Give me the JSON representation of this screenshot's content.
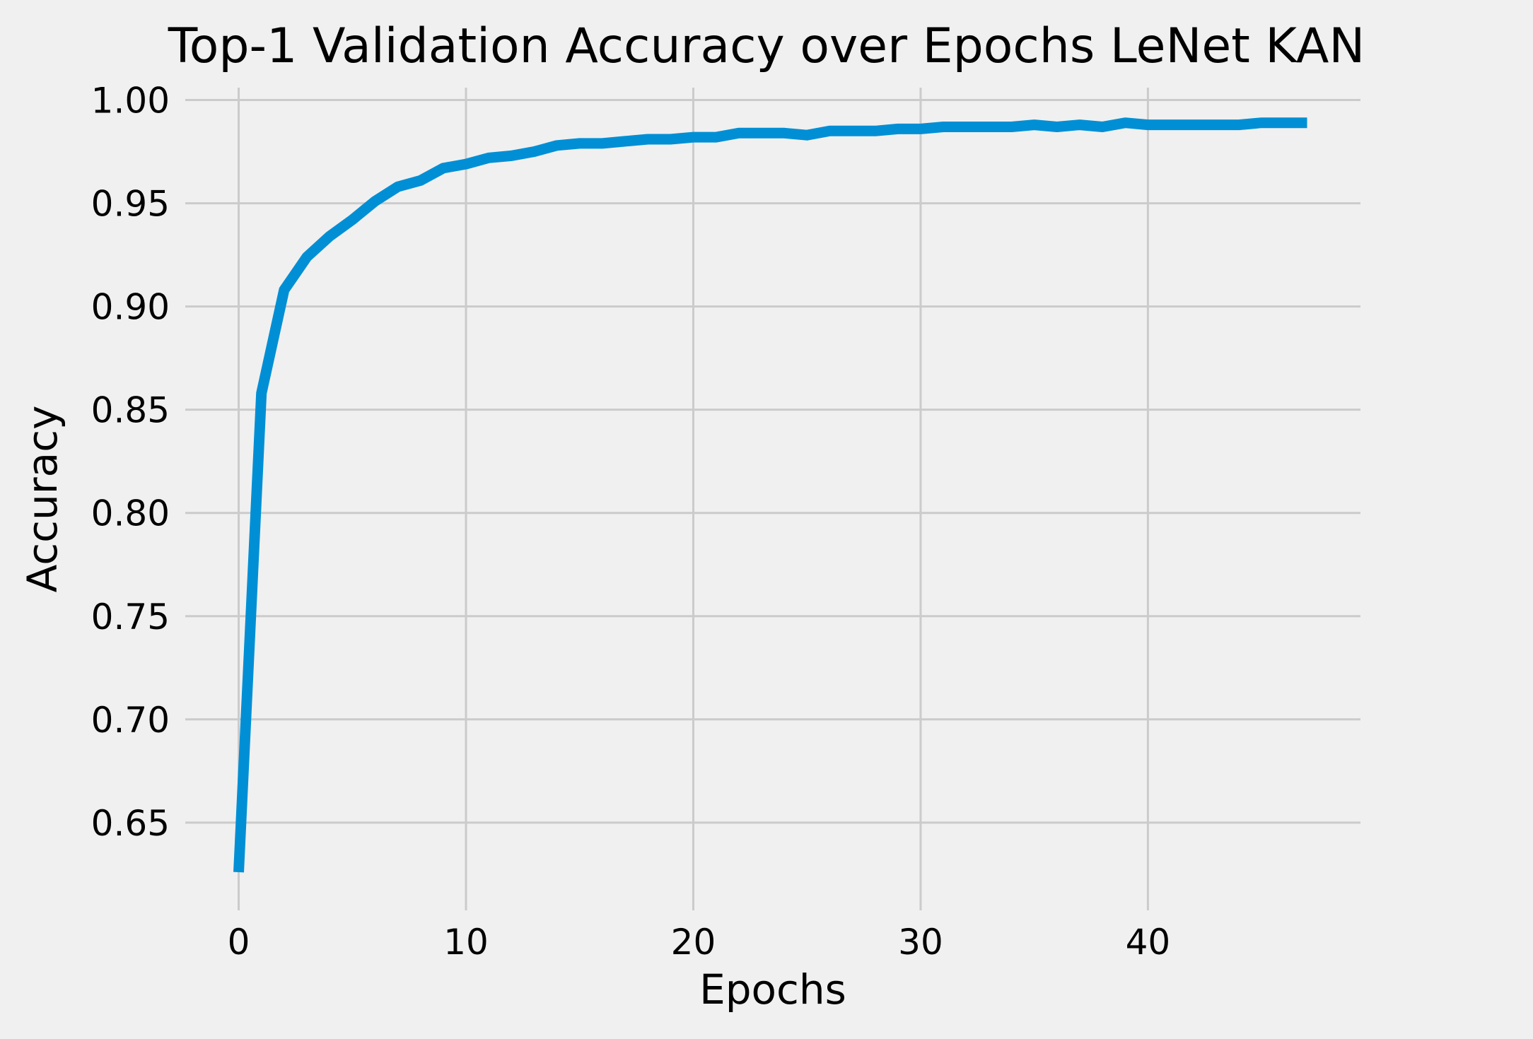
{
  "chart_data": {
    "type": "line",
    "title": "Top-1 Validation Accuracy over Epochs LeNet KAN",
    "xlabel": "Epochs",
    "ylabel": "Accuracy",
    "xlim": [
      -2.35,
      49.35
    ],
    "ylim": [
      0.6075,
      1.006
    ],
    "xticks": [
      0,
      10,
      20,
      30,
      40
    ],
    "xtick_labels": [
      "0",
      "10",
      "20",
      "30",
      "40"
    ],
    "yticks": [
      0.65,
      0.7,
      0.75,
      0.8,
      0.85,
      0.9,
      0.95,
      1.0
    ],
    "ytick_labels": [
      "0.65",
      "0.70",
      "0.75",
      "0.80",
      "0.85",
      "0.90",
      "0.95",
      "1.00"
    ],
    "grid": true,
    "colors": {
      "background": "#f0f0f0",
      "grid": "#cbcbcb",
      "line": "#008fd5"
    },
    "series": [
      {
        "x": [
          0,
          1,
          2,
          3,
          4,
          5,
          6,
          7,
          8,
          9,
          10,
          11,
          12,
          13,
          14,
          15,
          16,
          17,
          18,
          19,
          20,
          21,
          22,
          23,
          24,
          25,
          26,
          27,
          28,
          29,
          30,
          31,
          32,
          33,
          34,
          35,
          36,
          37,
          38,
          39,
          40,
          41,
          42,
          43,
          44,
          45,
          46,
          47
        ],
        "values": [
          0.626,
          0.858,
          0.908,
          0.924,
          0.934,
          0.942,
          0.951,
          0.958,
          0.961,
          0.967,
          0.969,
          0.972,
          0.973,
          0.975,
          0.978,
          0.979,
          0.979,
          0.98,
          0.981,
          0.981,
          0.982,
          0.982,
          0.984,
          0.984,
          0.984,
          0.983,
          0.985,
          0.985,
          0.985,
          0.986,
          0.986,
          0.987,
          0.987,
          0.987,
          0.987,
          0.988,
          0.987,
          0.988,
          0.987,
          0.989,
          0.988,
          0.988,
          0.988,
          0.988,
          0.988,
          0.989,
          0.989,
          0.989
        ]
      }
    ]
  }
}
